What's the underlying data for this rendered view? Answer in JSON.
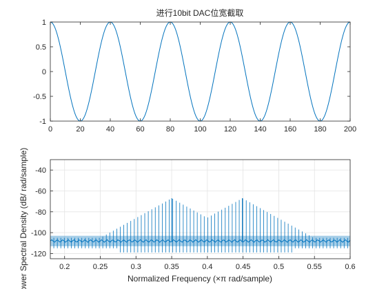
{
  "chart_data": [
    {
      "type": "line",
      "title": "进行10bit DAC位宽截取",
      "xlabel": "",
      "ylabel": "",
      "xlim": [
        0,
        200
      ],
      "ylim": [
        -1,
        1
      ],
      "xticks": [
        0,
        20,
        40,
        60,
        80,
        100,
        120,
        140,
        160,
        180,
        200
      ],
      "yticks": [
        -1,
        -0.5,
        0,
        0.5,
        1
      ],
      "ytick_labels": [
        "-1",
        "-0.5",
        "0",
        "0.5",
        "1"
      ],
      "grid": false,
      "series": [
        {
          "kind": "cosine",
          "amplitude": 1,
          "period": 40,
          "x_start": 0,
          "x_end": 200,
          "color": "#0072BD"
        }
      ]
    },
    {
      "type": "line",
      "title": "",
      "xlabel": "Normalized Frequency  (×π rad/sample)",
      "ylabel": "Power Spectral Density (dB/ rad/sample)",
      "xlim": [
        0.18,
        0.6
      ],
      "ylim": [
        -125,
        -30
      ],
      "xticks": [
        0.2,
        0.25,
        0.3,
        0.35,
        0.4,
        0.45,
        0.5,
        0.55,
        0.6
      ],
      "xtick_labels": [
        "0.2",
        "0.25",
        "0.3",
        "0.35",
        "0.4",
        "0.45",
        "0.5",
        "0.55",
        "0.6"
      ],
      "yticks": [
        -120,
        -100,
        -80,
        -60,
        -40
      ],
      "grid": true,
      "series": [
        {
          "kind": "spectrum",
          "color": "#0072BD",
          "noise_floor_db": -108,
          "noise_band_db": [
            -113,
            -103
          ],
          "peaks": [
            {
              "x": 0.35,
              "y": -67
            },
            {
              "x": 0.449,
              "y": -67
            }
          ],
          "line_spacing": 0.0049
        }
      ]
    }
  ]
}
